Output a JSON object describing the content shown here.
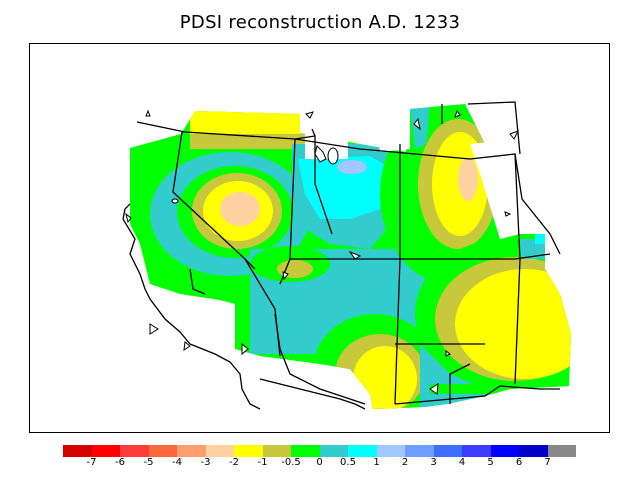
{
  "title": "PDSI reconstruction A.D. 1233",
  "legend": {
    "colors": [
      "#d40000",
      "#ff0000",
      "#ff3c3c",
      "#ff6a3c",
      "#ff9e6e",
      "#ffd2a0",
      "#ffff00",
      "#c8c83c",
      "#00ff00",
      "#33cccc",
      "#00ffff",
      "#a0c8ff",
      "#6e9eff",
      "#3c6eff",
      "#3c3cff",
      "#0000ff",
      "#0000c8",
      "#888888"
    ],
    "labels": [
      "-7",
      "-6",
      "-5",
      "-4",
      "-3",
      "-2",
      "-1",
      "-0.5",
      "0",
      "0.5",
      "1",
      "2",
      "3",
      "4",
      "5",
      "6",
      "7"
    ]
  }
}
